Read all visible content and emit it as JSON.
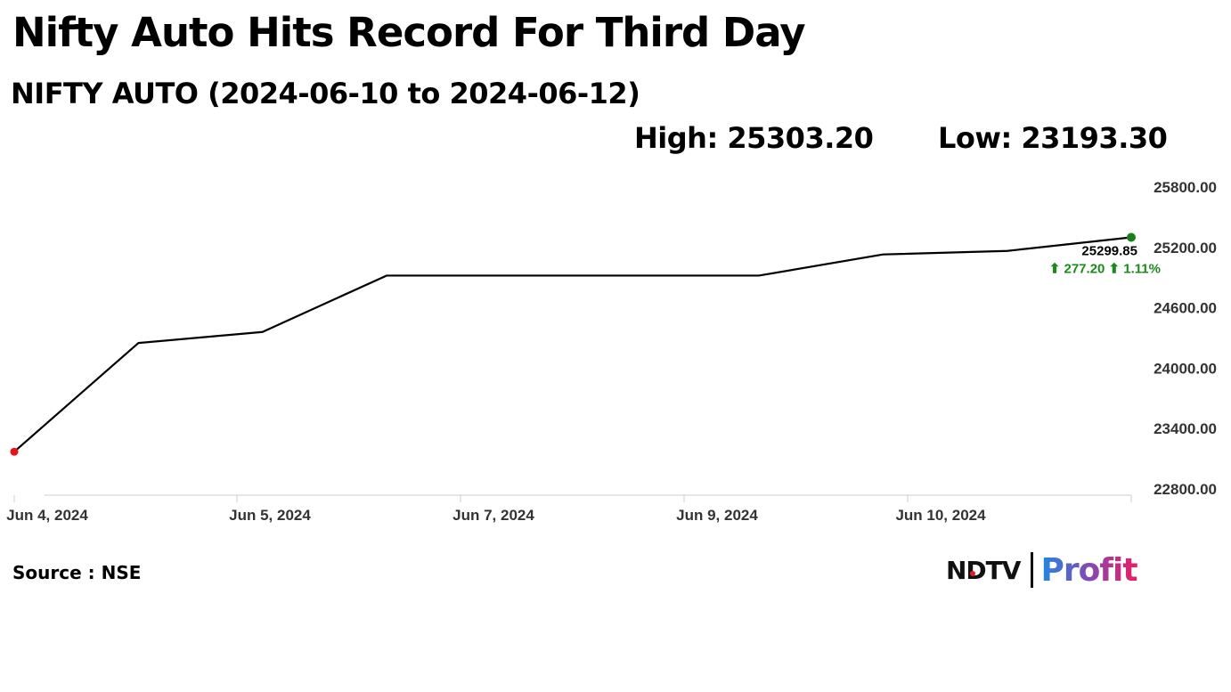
{
  "headline": "Nifty Auto Hits Record For Third Day",
  "subtitle": "NIFTY AUTO (2024-06-10 to 2024-06-12)",
  "high_label": "High: 25303.20",
  "low_label": "Low: 23193.30",
  "source": "Source : NSE",
  "logo": {
    "ndtv": "NDTV",
    "profit": "Profit"
  },
  "chart_data": {
    "type": "line",
    "title": "NIFTY AUTO (2024-06-10 to 2024-06-12)",
    "xlabel": "",
    "ylabel": "",
    "ylim": [
      22800,
      25800
    ],
    "y_ticks": [
      "25800.00",
      "25200.00",
      "24600.00",
      "24000.00",
      "23400.00",
      "22800.00"
    ],
    "x_tick_labels": [
      "Jun 4, 2024",
      "Jun 5, 2024",
      "Jun 7, 2024",
      "Jun 9, 2024",
      "Jun 10, 2024"
    ],
    "series": [
      {
        "values": [
          23170,
          24250,
          24360,
          24920,
          24920,
          24920,
          24920,
          25130,
          25165,
          25299.85
        ]
      }
    ],
    "last_value_label": "25299.85",
    "change_label": "⬆ 277.20 ⬆ 1.11%",
    "colors": {
      "line": "#000000",
      "start_point": "#e8141b",
      "end_point": "#1a7f1a",
      "change": "#1a8a1a",
      "axis": "#cccccc"
    },
    "grid": false
  }
}
